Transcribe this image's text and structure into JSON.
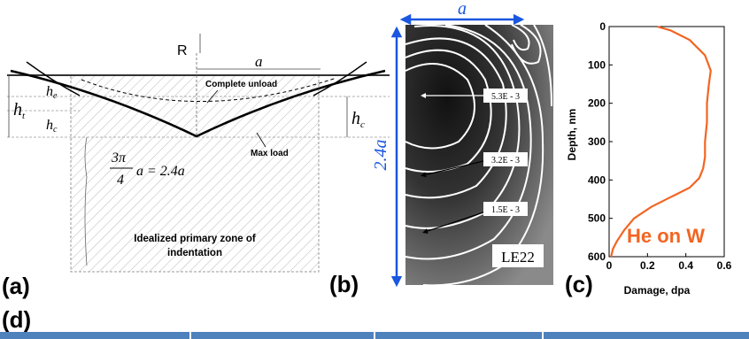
{
  "panel_a": {
    "label": "(a)",
    "R": "R",
    "a": "a",
    "ht": "h",
    "ht_sub": "t",
    "he": "h",
    "he_sub": "e",
    "hc_left": "h",
    "hc_left_sub": "c",
    "hc_right": "h",
    "hc_right_sub": "c",
    "complete_unload": "Complete unload",
    "max_load": "Max load",
    "formula_num": "3π",
    "formula_den": "4",
    "formula_rest": "a = 2.4a",
    "zone_line1": "Idealized primary zone of",
    "zone_line2": "indentation"
  },
  "panel_b": {
    "label": "(b)",
    "a": "a",
    "side": "2.4a",
    "contour1": "5.3E - 3",
    "contour2": "3.2E - 3",
    "contour3": "1.5E - 3",
    "code": "LE22",
    "accent": "#1a56e0"
  },
  "panel_c": {
    "label": "(c)",
    "annotation": "He on W",
    "annotation_color": "#f26522",
    "line_color": "#f26522"
  },
  "panel_d": {
    "label": "(d)",
    "bar_color": "#4f81bd"
  },
  "chart_data": {
    "type": "line",
    "xlabel": "Damage, dpa",
    "ylabel": "Depth, nm",
    "xlim": [
      0,
      0.6
    ],
    "ylim": [
      600,
      0
    ],
    "xticks": [
      "0",
      "0.2",
      "0.4",
      "0.6"
    ],
    "yticks": [
      "0",
      "100",
      "200",
      "300",
      "400",
      "500",
      "600"
    ],
    "x": [
      0.25,
      0.32,
      0.42,
      0.5,
      0.53,
      0.52,
      0.51,
      0.51,
      0.5,
      0.5,
      0.49,
      0.47,
      0.42,
      0.32,
      0.22,
      0.13,
      0.08,
      0.04,
      0.02,
      0.01
    ],
    "y": [
      0,
      10,
      35,
      75,
      115,
      150,
      200,
      250,
      300,
      340,
      370,
      395,
      420,
      445,
      470,
      500,
      530,
      560,
      580,
      600
    ]
  }
}
